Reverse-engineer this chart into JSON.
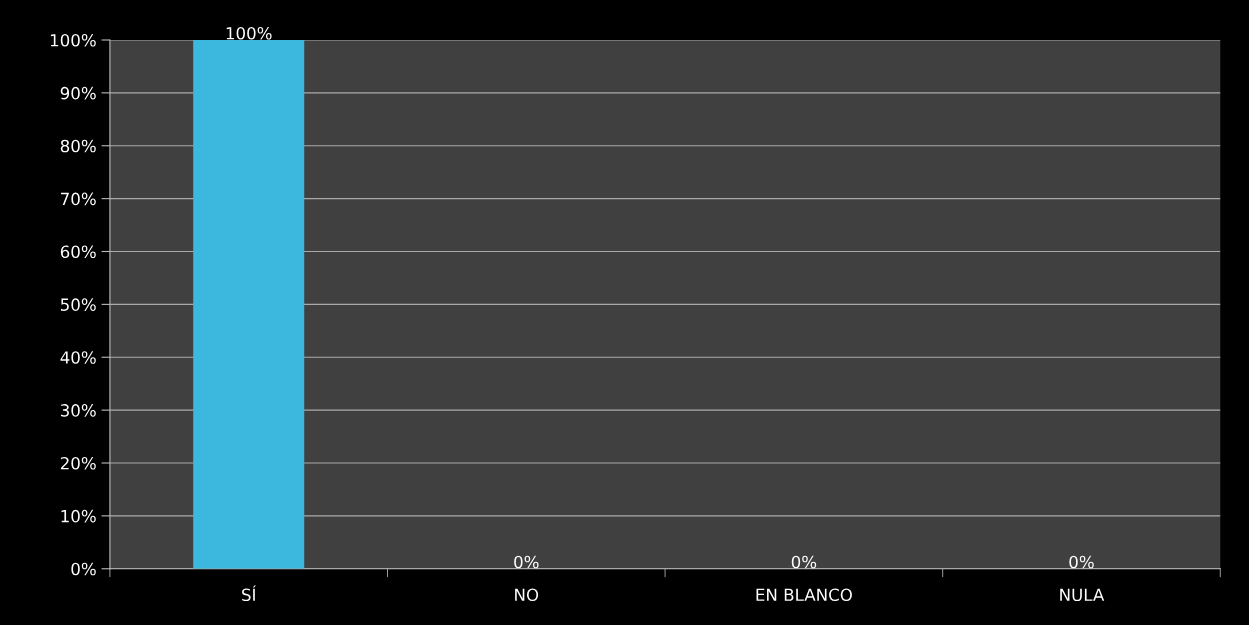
{
  "chart_data": {
    "type": "bar",
    "categories": [
      "SÍ",
      "NO",
      "EN BLANCO",
      "NULA"
    ],
    "values": [
      100,
      0,
      0,
      0
    ],
    "color": "#3cb8de",
    "value_labels": [
      "100%",
      "0%",
      "0%",
      "0%"
    ],
    "ylim": [
      0,
      100
    ],
    "yticks": [
      {
        "value": 0,
        "label": "0%"
      },
      {
        "value": 10,
        "label": "10%"
      },
      {
        "value": 20,
        "label": "20%"
      },
      {
        "value": 30,
        "label": "30%"
      },
      {
        "value": 40,
        "label": "40%"
      },
      {
        "value": 50,
        "label": "50%"
      },
      {
        "value": 60,
        "label": "60%"
      },
      {
        "value": 70,
        "label": "70%"
      },
      {
        "value": 80,
        "label": "80%"
      },
      {
        "value": 90,
        "label": "90%"
      },
      {
        "value": 100,
        "label": "100%"
      }
    ],
    "grid": "y",
    "legend": false
  }
}
